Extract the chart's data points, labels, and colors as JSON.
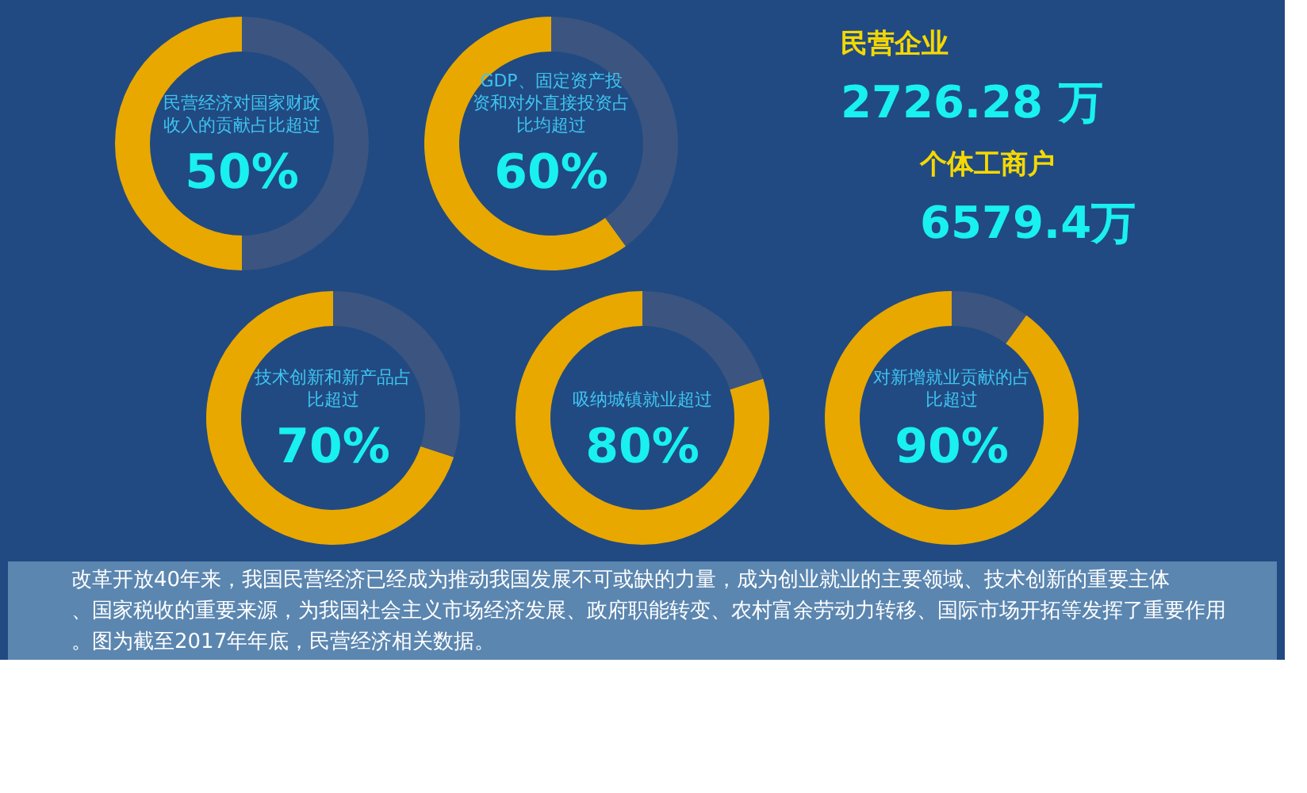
{
  "chart_data": [
    {
      "type": "donut",
      "title": "民营经济对国家财政收入的贡献占比超过",
      "values": [
        50,
        50
      ],
      "colors": [
        "#e8a800",
        "#3b5580"
      ],
      "value_labels": [
        "50%",
        null
      ]
    },
    {
      "type": "donut",
      "title": "GDP、固定资产投资和对外直接投资占比均超过",
      "values": [
        60,
        40
      ],
      "colors": [
        "#e8a800",
        "#3b5580"
      ],
      "value_labels": [
        "60%",
        null
      ]
    },
    {
      "type": "other",
      "annotations": [
        "民营企业",
        "2726.28 万",
        "个体工商户",
        "6579.4万"
      ]
    },
    {
      "type": "donut",
      "title": "技术创新和新产品占比超过",
      "values": [
        70,
        30
      ],
      "colors": [
        "#e8a800",
        "#3b5580"
      ],
      "value_labels": [
        "70%",
        null
      ]
    },
    {
      "type": "donut",
      "title": "吸纳城镇就业超过",
      "values": [
        80,
        20
      ],
      "colors": [
        "#e8a800",
        "#3b5580"
      ],
      "value_labels": [
        "80%",
        null
      ]
    },
    {
      "type": "donut",
      "title": "对新增就业贡献的占比超过",
      "values": [
        90,
        10
      ],
      "colors": [
        "#e8a800",
        "#3b5580"
      ],
      "value_labels": [
        "90%",
        null
      ]
    },
    {
      "type": "other",
      "annotations": [
        "　　改革开放40年来，我国民营经济已经成为推动我国发展不可或缺的力量，成为创业就业的主要领域、技术创新的重要主体、国家税收的重要来源，为我国社会主义市场经济发展、政府职能转变、农村富余劳动力转移、国际市场开拓等发挥了重要作用。图为截至2017年年底，民营经济相关数据。"
      ]
    }
  ]
}
